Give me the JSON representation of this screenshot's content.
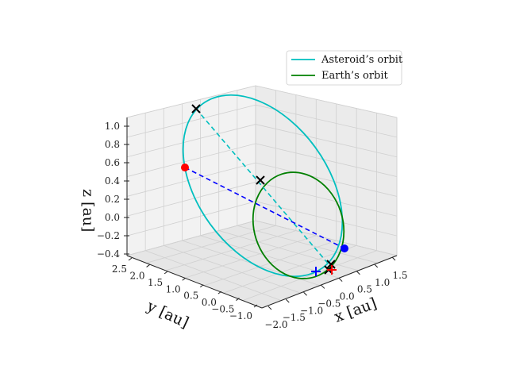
{
  "chart_data": {
    "type": "line",
    "projection": "3d",
    "axes": {
      "x": {
        "label": "x [au]",
        "ticks": [
          "−2.0",
          "−1.5",
          "−1.0",
          "−0.5",
          "0.0",
          "0.5",
          "1.0",
          "1.5"
        ]
      },
      "y": {
        "label": "y [au]",
        "ticks": [
          "−1.0",
          "−0.5",
          "0.0",
          "0.5",
          "1.0",
          "1.5",
          "2.0",
          "2.5"
        ]
      },
      "z": {
        "label": "z [au]",
        "ticks": [
          "−0.4",
          "−0.2",
          "0.0",
          "0.2",
          "0.4",
          "0.6",
          "0.8",
          "1.0"
        ]
      }
    },
    "grid": true,
    "legend": {
      "placement": "upper-right",
      "entries": [
        {
          "label": "Asteroid’s orbit",
          "color": "#00bfbf"
        },
        {
          "label": "Earth’s orbit",
          "color": "#008000"
        }
      ]
    },
    "series": [
      {
        "name": "Asteroid’s orbit",
        "color": "#00bfbf",
        "style": "solid",
        "shape": "ellipse"
      },
      {
        "name": "Earth’s orbit",
        "color": "#008000",
        "style": "solid",
        "shape": "ellipse"
      }
    ],
    "lines": [
      {
        "color": "#00bfbf",
        "style": "dashed"
      },
      {
        "color": "#0000ff",
        "style": "dashed"
      }
    ],
    "markers": [
      {
        "type": "cross",
        "color": "#000000"
      },
      {
        "type": "cross",
        "color": "#000000"
      },
      {
        "type": "cross",
        "color": "#000000"
      },
      {
        "type": "cross",
        "color": "#000000"
      },
      {
        "type": "dot",
        "color": "#ff0000"
      },
      {
        "type": "dot",
        "color": "#0000ff"
      },
      {
        "type": "plus",
        "color": "#0000ff"
      },
      {
        "type": "plus",
        "color": "#ff0000"
      }
    ]
  }
}
